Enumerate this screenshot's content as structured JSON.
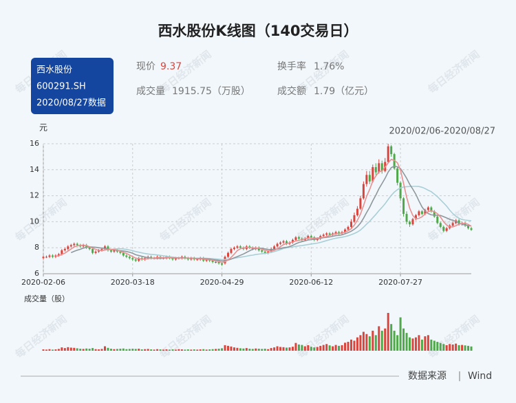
{
  "header": {
    "title": "西水股份K线图（140交易日）",
    "badge": [
      "西水股份",
      "600291.SH",
      "2020/08/27数据"
    ],
    "stats": [
      {
        "label": "现价",
        "value": "9.37"
      },
      {
        "label": "换手率",
        "value": "1.76%"
      },
      {
        "label": "成交量",
        "value": "1915.75（万股）"
      },
      {
        "label": "成交额",
        "value": "1.79（亿元）"
      }
    ],
    "watermark": "每日经济新闻"
  },
  "chart_data": {
    "type": "candlestick",
    "y_label": "元",
    "date_range": "2020/02/06-2020/08/27",
    "up_color": "#d9443c",
    "down_color": "#4fa84a",
    "grid": true,
    "ylim": [
      6,
      16
    ],
    "yticks": [
      6,
      8,
      10,
      12,
      14,
      16
    ],
    "categories": [
      "2020-02-06",
      null,
      null,
      null,
      null,
      null,
      null,
      null,
      null,
      null,
      null,
      null,
      null,
      null,
      null,
      null,
      null,
      null,
      null,
      null,
      null,
      null,
      null,
      null,
      null,
      null,
      null,
      null,
      null,
      "2020-03-18",
      null,
      null,
      null,
      null,
      null,
      null,
      null,
      null,
      null,
      null,
      null,
      null,
      null,
      null,
      null,
      null,
      null,
      null,
      null,
      null,
      null,
      null,
      null,
      null,
      null,
      null,
      null,
      null,
      "2020-04-29",
      null,
      null,
      null,
      null,
      null,
      null,
      null,
      null,
      null,
      null,
      null,
      null,
      null,
      null,
      null,
      null,
      null,
      null,
      null,
      null,
      null,
      null,
      null,
      null,
      null,
      null,
      null,
      null,
      "2020-06-12",
      null,
      null,
      null,
      null,
      null,
      null,
      null,
      null,
      null,
      null,
      null,
      null,
      null,
      null,
      null,
      null,
      null,
      null,
      null,
      null,
      null,
      null,
      null,
      null,
      null,
      null,
      null,
      null,
      "2020-07-27",
      null,
      null,
      null,
      null,
      null,
      null,
      null,
      null,
      null,
      null,
      null,
      null,
      null,
      null,
      null,
      null,
      null,
      null,
      null,
      null,
      null,
      null,
      null
    ],
    "open": [
      7.2,
      7.3,
      7.3,
      7.4,
      7.3,
      7.4,
      7.5,
      7.8,
      7.9,
      8.1,
      8.2,
      8.3,
      8.2,
      8.1,
      8.2,
      8.0,
      7.9,
      7.6,
      7.7,
      7.8,
      7.9,
      8.1,
      7.8,
      7.7,
      7.8,
      7.7,
      7.6,
      7.4,
      7.3,
      7.2,
      7.1,
      7.0,
      7.2,
      7.1,
      7.2,
      7.3,
      7.2,
      7.2,
      7.3,
      7.2,
      7.2,
      7.3,
      7.2,
      7.1,
      7.2,
      7.2,
      7.3,
      7.2,
      7.1,
      7.2,
      7.1,
      7.1,
      7.2,
      7.0,
      7.1,
      7.0,
      6.9,
      6.9,
      6.8,
      6.8,
      7.3,
      7.6,
      7.9,
      8.0,
      8.1,
      8.0,
      7.9,
      8.1,
      8.0,
      7.9,
      8.0,
      7.8,
      7.7,
      7.6,
      7.7,
      7.9,
      8.1,
      8.3,
      8.4,
      8.5,
      8.3,
      8.4,
      8.6,
      8.8,
      8.7,
      8.6,
      8.7,
      8.9,
      8.8,
      8.6,
      8.7,
      8.9,
      9.0,
      9.1,
      9.0,
      9.1,
      9.2,
      9.1,
      9.2,
      9.4,
      9.6,
      10.0,
      10.5,
      11.0,
      11.8,
      12.9,
      13.6,
      13.1,
      14.2,
      13.8,
      14.5,
      13.9,
      14.6,
      15.8,
      15.2,
      14.1,
      13.0,
      11.8,
      10.6,
      10.0,
      9.8,
      10.2,
      10.5,
      10.8,
      10.6,
      10.9,
      11.1,
      10.8,
      10.4,
      9.9,
      9.6,
      9.3,
      9.5,
      9.7,
      9.9,
      10.1,
      9.8,
      9.9,
      9.7,
      9.5
    ],
    "high": [
      7.4,
      7.4,
      7.5,
      7.5,
      7.5,
      7.6,
      7.9,
      8.0,
      8.2,
      8.3,
      8.4,
      8.4,
      8.3,
      8.3,
      8.3,
      8.1,
      8.0,
      7.8,
      7.9,
      8.0,
      8.2,
      8.2,
      7.9,
      7.9,
      7.9,
      7.8,
      7.7,
      7.5,
      7.4,
      7.3,
      7.2,
      7.3,
      7.3,
      7.3,
      7.4,
      7.4,
      7.3,
      7.4,
      7.4,
      7.3,
      7.4,
      7.4,
      7.3,
      7.3,
      7.3,
      7.4,
      7.4,
      7.3,
      7.3,
      7.3,
      7.2,
      7.3,
      7.3,
      7.2,
      7.2,
      7.1,
      7.0,
      7.0,
      6.9,
      7.4,
      7.7,
      8.0,
      8.1,
      8.2,
      8.2,
      8.1,
      8.2,
      8.2,
      8.1,
      8.1,
      8.1,
      7.9,
      7.8,
      7.8,
      8.0,
      8.2,
      8.4,
      8.5,
      8.6,
      8.6,
      8.5,
      8.7,
      8.9,
      8.9,
      8.8,
      8.8,
      9.0,
      9.0,
      8.9,
      8.8,
      9.0,
      9.1,
      9.2,
      9.2,
      9.2,
      9.3,
      9.3,
      9.3,
      9.5,
      9.7,
      10.2,
      10.7,
      11.2,
      12.0,
      13.1,
      13.9,
      13.9,
      14.4,
      14.5,
      14.8,
      14.7,
      14.9,
      16.0,
      15.9,
      15.3,
      14.2,
      13.1,
      11.9,
      10.8,
      10.1,
      10.3,
      10.6,
      10.9,
      10.9,
      11.0,
      11.2,
      11.2,
      10.9,
      10.5,
      10.0,
      9.7,
      9.6,
      9.8,
      10.0,
      10.2,
      10.2,
      10.0,
      10.0,
      9.8,
      9.6
    ],
    "low": [
      7.1,
      7.2,
      7.2,
      7.2,
      7.2,
      7.3,
      7.4,
      7.7,
      7.8,
      8.0,
      8.1,
      8.1,
      8.0,
      8.0,
      7.9,
      7.8,
      7.5,
      7.5,
      7.6,
      7.7,
      7.8,
      7.7,
      7.6,
      7.6,
      7.6,
      7.5,
      7.3,
      7.2,
      7.1,
      7.0,
      6.9,
      6.9,
      7.0,
      7.0,
      7.1,
      7.1,
      7.1,
      7.1,
      7.1,
      7.1,
      7.1,
      7.1,
      7.0,
      7.0,
      7.1,
      7.1,
      7.1,
      7.0,
      7.0,
      7.0,
      7.0,
      7.0,
      6.9,
      6.9,
      6.9,
      6.8,
      6.8,
      6.7,
      6.6,
      6.7,
      7.2,
      7.5,
      7.8,
      7.9,
      7.9,
      7.8,
      7.8,
      7.9,
      7.8,
      7.8,
      7.7,
      7.6,
      7.5,
      7.5,
      7.6,
      7.8,
      8.0,
      8.2,
      8.3,
      8.2,
      8.2,
      8.3,
      8.5,
      8.6,
      8.5,
      8.5,
      8.6,
      8.7,
      8.5,
      8.5,
      8.6,
      8.8,
      8.9,
      8.9,
      8.9,
      9.0,
      9.0,
      9.0,
      9.1,
      9.3,
      9.5,
      9.9,
      10.4,
      10.9,
      11.7,
      12.7,
      12.9,
      13.0,
      13.6,
      13.7,
      13.7,
      13.8,
      14.5,
      15.0,
      14.0,
      12.8,
      11.6,
      10.4,
      9.8,
      9.6,
      9.7,
      10.1,
      10.4,
      10.5,
      10.5,
      10.8,
      10.7,
      10.3,
      9.8,
      9.5,
      9.2,
      9.2,
      9.4,
      9.6,
      9.8,
      9.7,
      9.7,
      9.6,
      9.4,
      9.3
    ],
    "close": [
      7.3,
      7.3,
      7.4,
      7.3,
      7.4,
      7.5,
      7.8,
      7.9,
      8.1,
      8.2,
      8.3,
      8.2,
      8.1,
      8.2,
      8.0,
      7.9,
      7.6,
      7.7,
      7.8,
      7.9,
      8.1,
      7.8,
      7.7,
      7.8,
      7.7,
      7.6,
      7.4,
      7.3,
      7.2,
      7.1,
      7.0,
      7.2,
      7.1,
      7.2,
      7.3,
      7.2,
      7.2,
      7.3,
      7.2,
      7.2,
      7.3,
      7.2,
      7.1,
      7.2,
      7.2,
      7.3,
      7.2,
      7.1,
      7.2,
      7.1,
      7.1,
      7.2,
      7.0,
      7.1,
      7.0,
      6.9,
      6.9,
      6.8,
      6.7,
      7.3,
      7.6,
      7.9,
      8.0,
      8.1,
      8.0,
      7.9,
      8.1,
      8.0,
      7.9,
      8.0,
      7.8,
      7.7,
      7.6,
      7.7,
      7.9,
      8.1,
      8.3,
      8.4,
      8.5,
      8.3,
      8.4,
      8.6,
      8.8,
      8.7,
      8.6,
      8.7,
      8.9,
      8.8,
      8.6,
      8.7,
      8.9,
      9.0,
      9.1,
      9.0,
      9.1,
      9.2,
      9.1,
      9.2,
      9.4,
      9.6,
      10.0,
      10.5,
      11.0,
      11.8,
      12.9,
      13.6,
      13.1,
      14.2,
      13.8,
      14.5,
      13.9,
      14.6,
      15.8,
      15.2,
      14.1,
      13.0,
      11.8,
      10.6,
      10.0,
      9.8,
      10.2,
      10.5,
      10.8,
      10.6,
      10.9,
      11.1,
      10.8,
      10.4,
      9.9,
      9.6,
      9.3,
      9.5,
      9.7,
      9.9,
      10.1,
      9.8,
      9.9,
      9.7,
      9.5,
      9.37
    ],
    "volume": {
      "name": "成交量（股）",
      "values": [
        6000000,
        5000000,
        7000000,
        5000000,
        6000000,
        8000000,
        15000000,
        12000000,
        16000000,
        14000000,
        13000000,
        11000000,
        9000000,
        8000000,
        10000000,
        9000000,
        12000000,
        7000000,
        6000000,
        8000000,
        20000000,
        13000000,
        9000000,
        7000000,
        8000000,
        9000000,
        10000000,
        7000000,
        8000000,
        9000000,
        8000000,
        9000000,
        6000000,
        7000000,
        8000000,
        6000000,
        5000000,
        7000000,
        6000000,
        5000000,
        6000000,
        5000000,
        6000000,
        5000000,
        7000000,
        6000000,
        5000000,
        6000000,
        5000000,
        6000000,
        5000000,
        6000000,
        7000000,
        5000000,
        6000000,
        7000000,
        8000000,
        9000000,
        11000000,
        25000000,
        22000000,
        19000000,
        15000000,
        13000000,
        11000000,
        10000000,
        12000000,
        9000000,
        8000000,
        10000000,
        9000000,
        8000000,
        9000000,
        7000000,
        12000000,
        15000000,
        20000000,
        17000000,
        16000000,
        14000000,
        15000000,
        18000000,
        35000000,
        28000000,
        26000000,
        20000000,
        25000000,
        18000000,
        15000000,
        17000000,
        22000000,
        26000000,
        30000000,
        24000000,
        20000000,
        26000000,
        22000000,
        25000000,
        36000000,
        40000000,
        50000000,
        45000000,
        60000000,
        70000000,
        85000000,
        75000000,
        65000000,
        90000000,
        70000000,
        110000000,
        90000000,
        100000000,
        170000000,
        120000000,
        90000000,
        70000000,
        150000000,
        100000000,
        80000000,
        60000000,
        55000000,
        60000000,
        70000000,
        50000000,
        65000000,
        70000000,
        50000000,
        45000000,
        40000000,
        35000000,
        30000000,
        25000000,
        30000000,
        28000000,
        32000000,
        25000000,
        26000000,
        24000000,
        22000000,
        19157500
      ]
    }
  },
  "footer": {
    "source_label": "数据来源",
    "separator": "|",
    "source": "Wind"
  }
}
